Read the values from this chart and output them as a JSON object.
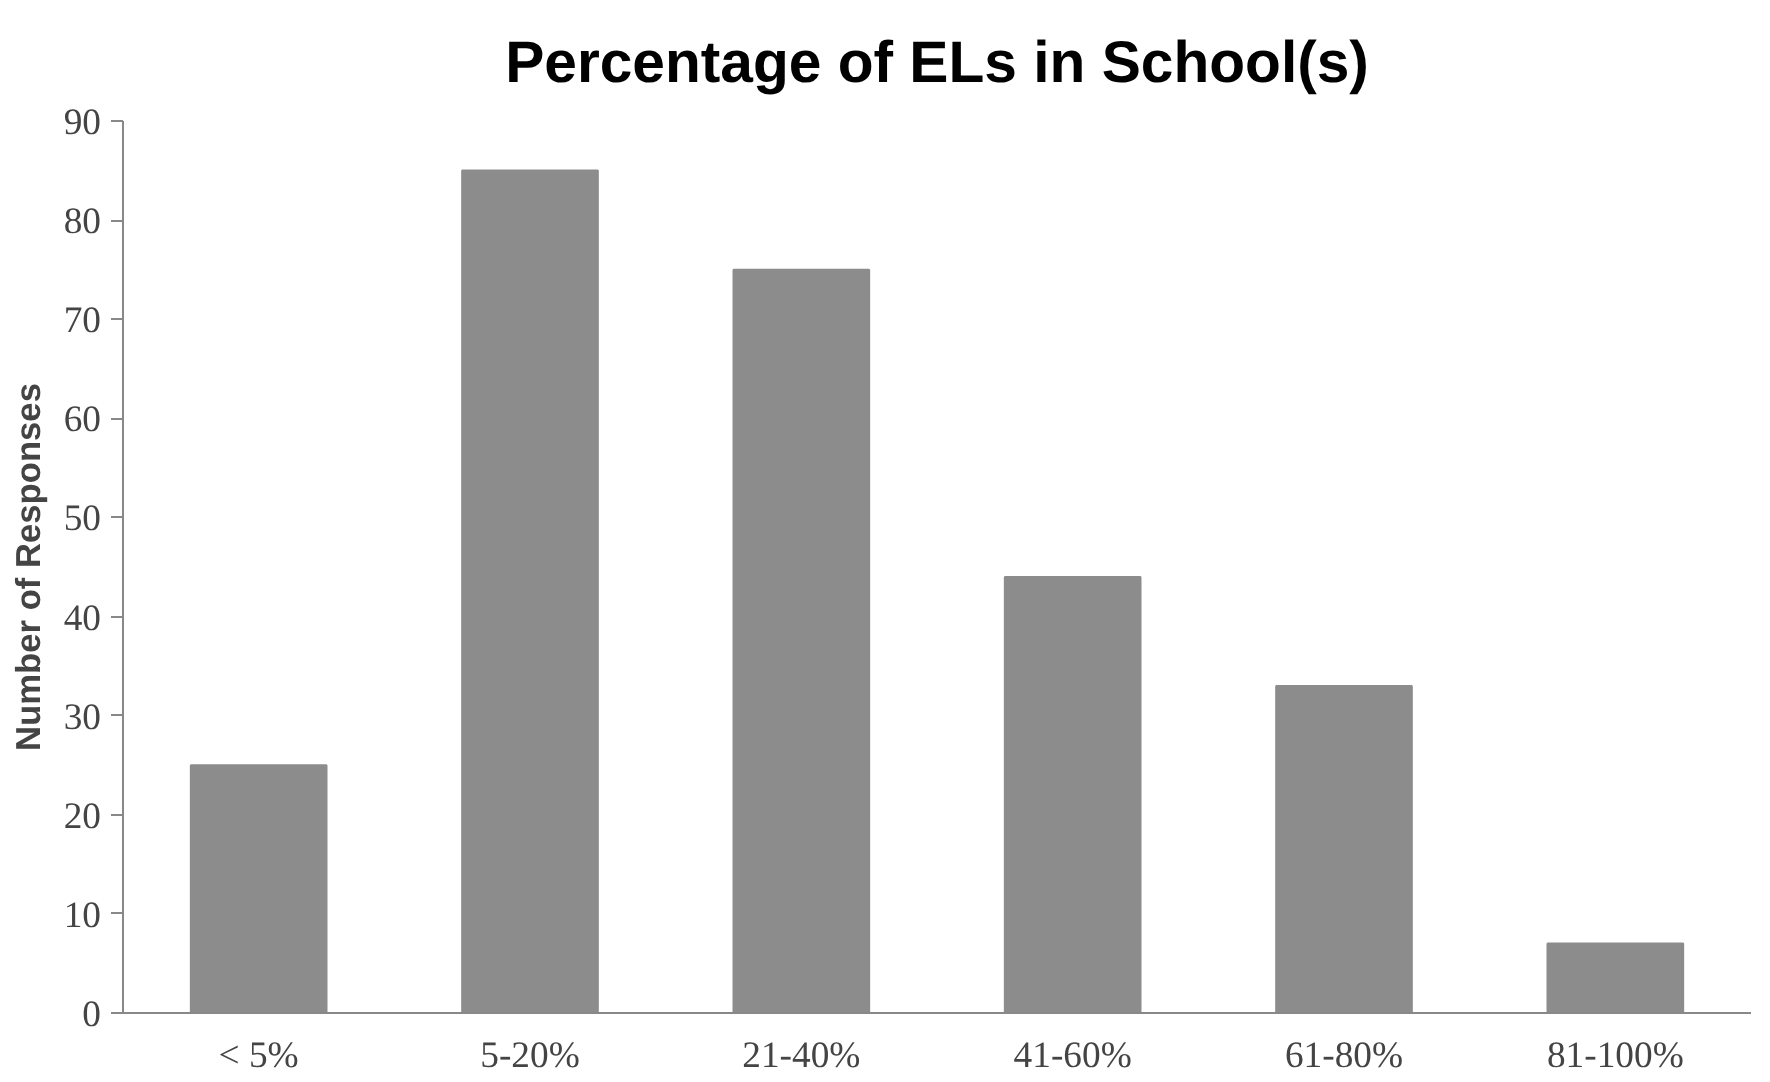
{
  "chart_data": {
    "type": "bar",
    "title": "Percentage of ELs in School(s)",
    "ylabel": "Number of Responses",
    "categories": [
      "< 5%",
      "5-20%",
      "21-40%",
      "41-60%",
      "61-80%",
      "81-100%"
    ],
    "values": [
      25,
      85,
      75,
      44,
      33,
      7
    ],
    "color": "#8c8c8c",
    "ylim": [
      0,
      90
    ],
    "yticks": [
      0,
      10,
      20,
      30,
      40,
      50,
      60,
      70,
      80,
      90
    ],
    "grid": false
  }
}
